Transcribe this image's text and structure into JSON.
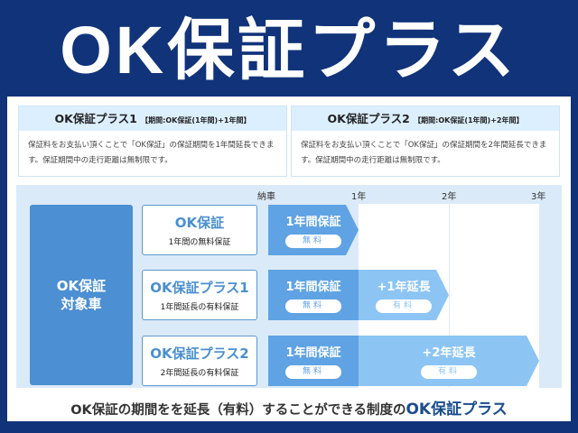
{
  "title": "OK保証プラス",
  "cards": [
    {
      "name": "OK保証プラス1",
      "period": "【期間:OK保証(1年間)+1年間】",
      "body": "保証料をお支払い頂くことで「OK保証」の保証期間を1年間延長できます。保証期間中の走行距離は無制限です。"
    },
    {
      "name": "OK保証プラス2",
      "period": "【期間:OK保証(1年間)+2年間】",
      "body": "保証料をお支払い頂くことで「OK保証」の保証期間を2年間延長できます。保証期間中の走行距離は無制限です。"
    }
  ],
  "timeline": {
    "ticks": [
      "納車",
      "1年",
      "2年",
      "3年"
    ]
  },
  "target": {
    "line1": "OK保証",
    "line2": "対象車"
  },
  "rows": [
    {
      "name": "OK保証",
      "sub": "1年間の無料保証",
      "base": "1年間保証",
      "base_fee": "無料",
      "ext": null,
      "ext_fee": null,
      "years": 1
    },
    {
      "name": "OK保証プラス1",
      "sub": "1年間延長の有料保証",
      "base": "1年間保証",
      "base_fee": "無料",
      "ext": "+1年延長",
      "ext_fee": "有料",
      "years": 2
    },
    {
      "name": "OK保証プラス2",
      "sub": "2年間延長の有料保証",
      "base": "1年間保証",
      "base_fee": "無料",
      "ext": "+2年延長",
      "ext_fee": "有料",
      "years": 3
    }
  ],
  "caption": {
    "text": "OK保証の期間をを延長（有料）することができる制度の",
    "highlight": "OK保証プラス"
  },
  "colors": {
    "background": "#10337a",
    "base": "#5fa3e4",
    "extension": "#8cc5f4",
    "target": "#4c8fd2"
  }
}
